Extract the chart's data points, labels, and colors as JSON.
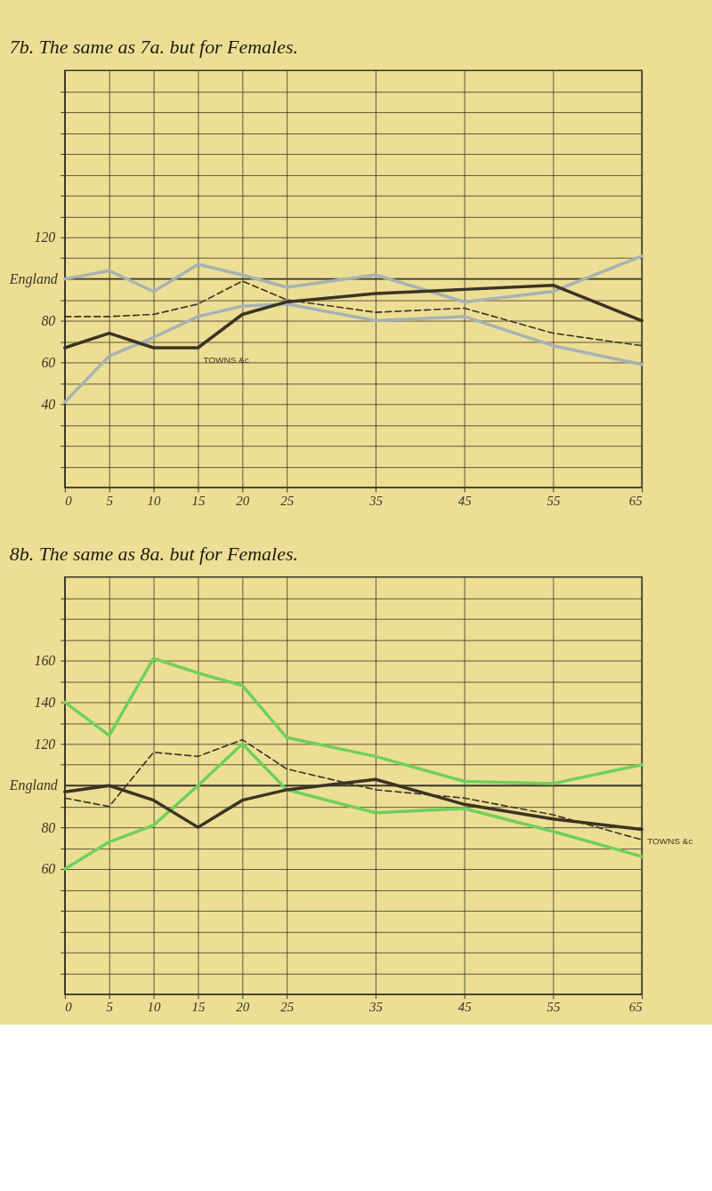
{
  "chart_data": [
    {
      "type": "line",
      "title": "7b. The same as 7a. but for Females.",
      "x": [
        0,
        5,
        10,
        15,
        20,
        25,
        35,
        45,
        55,
        65
      ],
      "xlim": [
        0,
        65
      ],
      "xticks": [
        0,
        5,
        10,
        15,
        20,
        25,
        35,
        45,
        55,
        65
      ],
      "ylim": [
        0,
        200
      ],
      "yticks": [
        {
          "value": 10,
          "label": null
        },
        {
          "value": 20,
          "label": null
        },
        {
          "value": 30,
          "label": null
        },
        40,
        {
          "value": 50,
          "label": null
        },
        60,
        {
          "value": 70,
          "label": null
        },
        80,
        {
          "value": 90,
          "label": null
        },
        {
          "value": 110,
          "label": null
        },
        120,
        {
          "value": 130,
          "label": null
        },
        {
          "value": 140,
          "label": null
        },
        {
          "value": 150,
          "label": null
        },
        {
          "value": 160,
          "label": null
        },
        {
          "value": 170,
          "label": null
        },
        {
          "value": 180,
          "label": null
        },
        {
          "value": 190,
          "label": null
        }
      ],
      "grid": true,
      "legend": false,
      "marker": "none",
      "ref_lines": [
        {
          "axis": "y",
          "value": 100,
          "label": "England",
          "color": "#3b3324"
        }
      ],
      "series": [
        {
          "color": "#a7b2b4",
          "line_style": "solid",
          "values": [
            100,
            104,
            94,
            107,
            102,
            96,
            102,
            89,
            94,
            111
          ]
        },
        {
          "color": "#a7b2b4",
          "line_style": "solid",
          "values": [
            41,
            63,
            72,
            82,
            87,
            88,
            80,
            82,
            68,
            59
          ]
        },
        {
          "color": "#3b3324",
          "line_style": "dashed",
          "values": [
            82,
            82,
            83,
            88,
            99,
            90,
            84,
            86,
            74,
            68
          ]
        },
        {
          "name": "TOWNS &c",
          "color": "#3b3324",
          "line_style": "solid",
          "values": [
            67,
            74,
            67,
            67,
            83,
            89,
            93,
            95,
            97,
            80
          ]
        }
      ]
    },
    {
      "type": "line",
      "title": "8b. The same as 8a. but for Females.",
      "x": [
        0,
        5,
        10,
        15,
        20,
        25,
        35,
        45,
        55,
        65
      ],
      "xlim": [
        0,
        65
      ],
      "xticks": [
        0,
        5,
        10,
        15,
        20,
        25,
        35,
        45,
        55,
        65
      ],
      "ylim": [
        0,
        200
      ],
      "yticks": [
        {
          "value": 10,
          "label": null
        },
        {
          "value": 20,
          "label": null
        },
        {
          "value": 30,
          "label": null
        },
        {
          "value": 40,
          "label": null
        },
        {
          "value": 50,
          "label": null
        },
        60,
        {
          "value": 70,
          "label": null
        },
        80,
        {
          "value": 90,
          "label": null
        },
        {
          "value": 110,
          "label": null
        },
        120,
        {
          "value": 130,
          "label": null
        },
        140,
        {
          "value": 150,
          "label": null
        },
        160,
        {
          "value": 170,
          "label": null
        },
        {
          "value": 180,
          "label": null
        },
        {
          "value": 190,
          "label": null
        }
      ],
      "grid": true,
      "legend": false,
      "marker": "none",
      "ref_lines": [
        {
          "axis": "y",
          "value": 100,
          "label": "England",
          "color": "#3b3324"
        }
      ],
      "series": [
        {
          "color": "#6fd05a",
          "line_style": "solid",
          "values": [
            140,
            124,
            161,
            154,
            148,
            123,
            114,
            102,
            101,
            110
          ]
        },
        {
          "color": "#6fd05a",
          "line_style": "solid",
          "values": [
            60,
            73,
            81,
            100,
            120,
            98,
            87,
            89,
            78,
            66
          ]
        },
        {
          "color": "#3b3324",
          "line_style": "dashed",
          "values": [
            94,
            90,
            116,
            114,
            122,
            108,
            98,
            94,
            86,
            74
          ]
        },
        {
          "name": "TOWNS &c",
          "color": "#3b3324",
          "line_style": "solid",
          "values": [
            97,
            100,
            93,
            80,
            93,
            98,
            103,
            91,
            84,
            79
          ]
        }
      ]
    }
  ]
}
